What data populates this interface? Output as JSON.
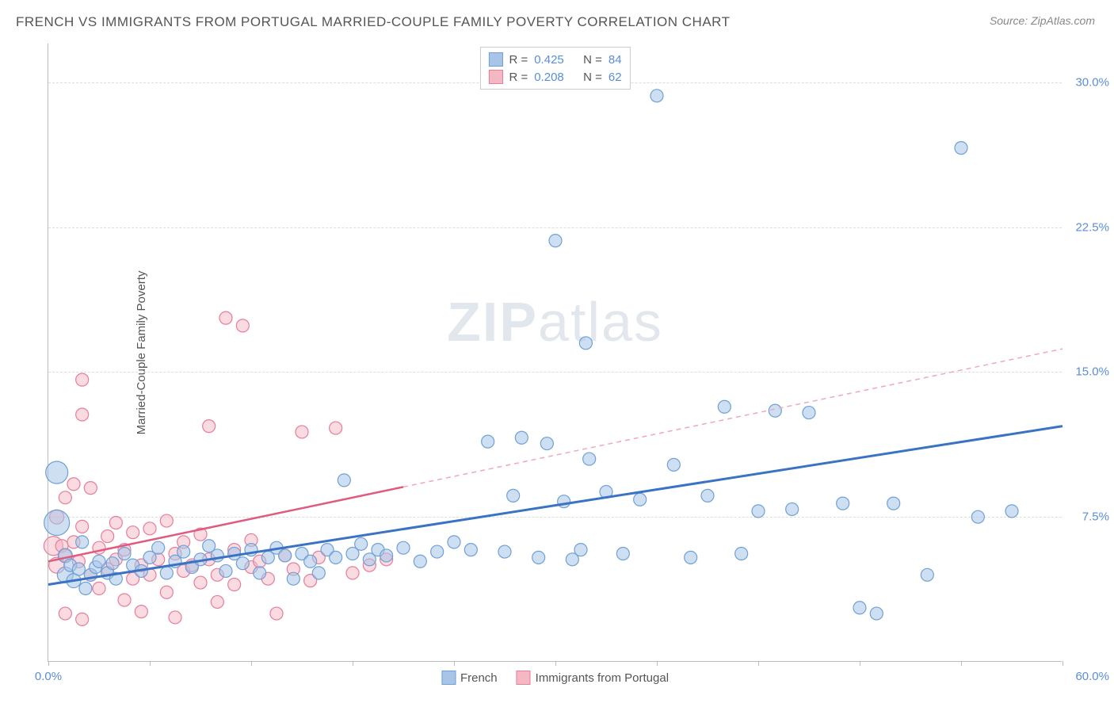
{
  "title": "FRENCH VS IMMIGRANTS FROM PORTUGAL MARRIED-COUPLE FAMILY POVERTY CORRELATION CHART",
  "source": "Source: ZipAtlas.com",
  "ylabel": "Married-Couple Family Poverty",
  "watermark_zip": "ZIP",
  "watermark_atlas": "atlas",
  "chart": {
    "type": "scatter",
    "background_color": "#ffffff",
    "grid_color": "#dddddd",
    "axis_color": "#bbbbbb",
    "label_fontsize": 15,
    "title_fontsize": 17,
    "xlim": [
      0,
      60
    ],
    "ylim": [
      0,
      32
    ],
    "x_ticks": [
      0,
      6,
      12,
      18,
      24,
      30,
      36,
      42,
      48,
      54,
      60
    ],
    "x_tick_labels": {
      "0": "0.0%",
      "60": "60.0%"
    },
    "y_ticks": [
      7.5,
      15.0,
      22.5,
      30.0
    ],
    "y_tick_labels": [
      "7.5%",
      "15.0%",
      "22.5%",
      "30.0%"
    ],
    "tick_label_color": "#5b8dd6",
    "series": [
      {
        "name": "French",
        "color_fill": "#a8c5e8",
        "color_stroke": "#6fa0d8",
        "fill_opacity": 0.55,
        "marker_r_base": 8,
        "R": "0.425",
        "N": "84",
        "trend": {
          "x1": 0,
          "y1": 4.0,
          "x2": 60,
          "y2": 12.2,
          "dashed_from_x": null,
          "line_color": "#3b73c4",
          "line_width": 3
        },
        "points": [
          [
            0.5,
            9.8,
            14
          ],
          [
            0.5,
            7.2,
            16
          ],
          [
            1,
            4.5,
            10
          ],
          [
            1,
            5.5,
            9
          ],
          [
            1.3,
            5.0,
            8
          ],
          [
            1.5,
            4.2,
            9
          ],
          [
            1.8,
            4.8,
            8
          ],
          [
            2,
            6.2,
            8
          ],
          [
            2.2,
            3.8,
            8
          ],
          [
            2.5,
            4.5,
            8
          ],
          [
            2.8,
            4.9,
            8
          ],
          [
            3,
            5.2,
            8
          ],
          [
            3.5,
            4.6,
            8
          ],
          [
            3.8,
            5.1,
            8
          ],
          [
            4,
            4.3,
            8
          ],
          [
            4.5,
            5.6,
            8
          ],
          [
            5,
            5.0,
            8
          ],
          [
            5.5,
            4.7,
            8
          ],
          [
            6,
            5.4,
            8
          ],
          [
            6.5,
            5.9,
            8
          ],
          [
            7,
            4.6,
            8
          ],
          [
            7.5,
            5.2,
            8
          ],
          [
            8,
            5.7,
            8
          ],
          [
            8.5,
            4.9,
            8
          ],
          [
            9,
            5.3,
            8
          ],
          [
            9.5,
            6.0,
            8
          ],
          [
            10,
            5.5,
            8
          ],
          [
            10.5,
            4.7,
            8
          ],
          [
            11,
            5.6,
            8
          ],
          [
            11.5,
            5.1,
            8
          ],
          [
            12,
            5.8,
            8
          ],
          [
            12.5,
            4.6,
            8
          ],
          [
            13,
            5.4,
            8
          ],
          [
            13.5,
            5.9,
            8
          ],
          [
            14,
            5.5,
            8
          ],
          [
            14.5,
            4.3,
            8
          ],
          [
            15,
            5.6,
            8
          ],
          [
            15.5,
            5.2,
            8
          ],
          [
            16,
            4.6,
            8
          ],
          [
            16.5,
            5.8,
            8
          ],
          [
            17,
            5.4,
            8
          ],
          [
            17.5,
            9.4,
            8
          ],
          [
            18,
            5.6,
            8
          ],
          [
            18.5,
            6.1,
            8
          ],
          [
            19,
            5.3,
            8
          ],
          [
            19.5,
            5.8,
            8
          ],
          [
            20,
            5.5,
            8
          ],
          [
            21,
            5.9,
            8
          ],
          [
            22,
            5.2,
            8
          ],
          [
            23,
            5.7,
            8
          ],
          [
            24,
            6.2,
            8
          ],
          [
            25,
            5.8,
            8
          ],
          [
            26,
            11.4,
            8
          ],
          [
            27,
            5.7,
            8
          ],
          [
            27.5,
            8.6,
            8
          ],
          [
            28,
            11.6,
            8
          ],
          [
            29,
            5.4,
            8
          ],
          [
            29.5,
            11.3,
            8
          ],
          [
            30,
            21.8,
            8
          ],
          [
            30.5,
            8.3,
            8
          ],
          [
            31,
            5.3,
            8
          ],
          [
            31.5,
            5.8,
            8
          ],
          [
            31.8,
            16.5,
            8
          ],
          [
            32,
            10.5,
            8
          ],
          [
            33,
            8.8,
            8
          ],
          [
            34,
            5.6,
            8
          ],
          [
            35,
            8.4,
            8
          ],
          [
            36,
            29.3,
            8
          ],
          [
            37,
            10.2,
            8
          ],
          [
            38,
            5.4,
            8
          ],
          [
            39,
            8.6,
            8
          ],
          [
            40,
            13.2,
            8
          ],
          [
            41,
            5.6,
            8
          ],
          [
            42,
            7.8,
            8
          ],
          [
            43,
            13.0,
            8
          ],
          [
            44,
            7.9,
            8
          ],
          [
            45,
            12.9,
            8
          ],
          [
            47,
            8.2,
            8
          ],
          [
            48,
            2.8,
            8
          ],
          [
            49,
            2.5,
            8
          ],
          [
            50,
            8.2,
            8
          ],
          [
            52,
            4.5,
            8
          ],
          [
            54,
            26.6,
            8
          ],
          [
            55,
            7.5,
            8
          ],
          [
            57,
            7.8,
            8
          ]
        ]
      },
      {
        "name": "Immigrants from Portugal",
        "color_fill": "#f4b8c4",
        "color_stroke": "#e87d98",
        "fill_opacity": 0.5,
        "marker_r_base": 8,
        "R": "0.208",
        "N": "62",
        "trend": {
          "x1": 0,
          "y1": 5.2,
          "x2": 60,
          "y2": 16.2,
          "dashed_from_x": 21,
          "line_color": "#e05b7e",
          "line_width": 2.5,
          "dash_color": "#f0a8b8"
        },
        "points": [
          [
            0.3,
            6.0,
            12
          ],
          [
            0.5,
            5.0,
            10
          ],
          [
            0.5,
            7.5,
            9
          ],
          [
            0.8,
            6.0,
            8
          ],
          [
            1,
            5.5,
            8
          ],
          [
            1,
            8.5,
            8
          ],
          [
            1,
            2.5,
            8
          ],
          [
            1.5,
            6.2,
            8
          ],
          [
            1.5,
            9.2,
            8
          ],
          [
            1.8,
            5.2,
            8
          ],
          [
            2,
            2.2,
            8
          ],
          [
            2,
            7.0,
            8
          ],
          [
            2,
            14.6,
            8
          ],
          [
            2,
            12.8,
            8
          ],
          [
            2.5,
            4.5,
            8
          ],
          [
            2.5,
            9.0,
            8
          ],
          [
            3,
            3.8,
            8
          ],
          [
            3,
            5.9,
            8
          ],
          [
            3.5,
            4.8,
            8
          ],
          [
            3.5,
            6.5,
            8
          ],
          [
            4,
            5.3,
            8
          ],
          [
            4,
            7.2,
            8
          ],
          [
            4.5,
            3.2,
            8
          ],
          [
            4.5,
            5.8,
            8
          ],
          [
            5,
            4.3,
            8
          ],
          [
            5,
            6.7,
            8
          ],
          [
            5.5,
            5.0,
            8
          ],
          [
            5.5,
            2.6,
            8
          ],
          [
            6,
            4.5,
            8
          ],
          [
            6,
            6.9,
            8
          ],
          [
            6.5,
            5.3,
            8
          ],
          [
            7,
            3.6,
            8
          ],
          [
            7,
            7.3,
            8
          ],
          [
            7.5,
            5.6,
            8
          ],
          [
            7.5,
            2.3,
            8
          ],
          [
            8,
            4.7,
            8
          ],
          [
            8,
            6.2,
            8
          ],
          [
            8.5,
            5.0,
            8
          ],
          [
            9,
            4.1,
            8
          ],
          [
            9,
            6.6,
            8
          ],
          [
            9.5,
            5.3,
            8
          ],
          [
            9.5,
            12.2,
            8
          ],
          [
            10,
            4.5,
            8
          ],
          [
            10,
            3.1,
            8
          ],
          [
            10.5,
            17.8,
            8
          ],
          [
            11,
            5.8,
            8
          ],
          [
            11,
            4.0,
            8
          ],
          [
            11.5,
            17.4,
            8
          ],
          [
            12,
            4.9,
            8
          ],
          [
            12,
            6.3,
            8
          ],
          [
            12.5,
            5.2,
            8
          ],
          [
            13,
            4.3,
            8
          ],
          [
            13.5,
            2.5,
            8
          ],
          [
            14,
            5.5,
            8
          ],
          [
            14.5,
            4.8,
            8
          ],
          [
            15,
            11.9,
            8
          ],
          [
            15.5,
            4.2,
            8
          ],
          [
            16,
            5.4,
            8
          ],
          [
            17,
            12.1,
            8
          ],
          [
            18,
            4.6,
            8
          ],
          [
            19,
            5.0,
            8
          ],
          [
            20,
            5.3,
            8
          ]
        ]
      }
    ],
    "r_legend_labels": {
      "R": "R =",
      "N": "N ="
    },
    "bottom_legend": [
      "French",
      "Immigrants from Portugal"
    ]
  }
}
